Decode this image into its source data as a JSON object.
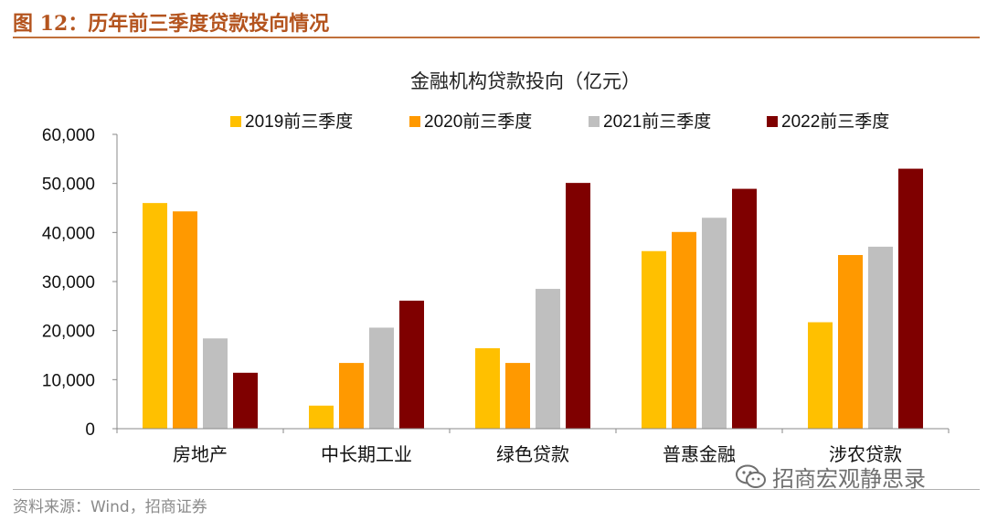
{
  "figure_title": "图 12：历年前三季度贷款投向情况",
  "source_note": "资料来源：Wind，招商证券",
  "watermark": {
    "text": "招商宏观静思录",
    "icon": "wechat-icon"
  },
  "chart_data": {
    "type": "bar",
    "title": "金融机构贷款投向（亿元）",
    "categories": [
      "房地产",
      "中长期工业",
      "绿色贷款",
      "普惠金融",
      "涉农贷款"
    ],
    "series": [
      {
        "name": "2019前三季度",
        "color": "#ffc000",
        "values": [
          46000,
          4700,
          16400,
          36200,
          21700
        ]
      },
      {
        "name": "2020前三季度",
        "color": "#ff9900",
        "values": [
          44300,
          13400,
          13400,
          40100,
          35400
        ]
      },
      {
        "name": "2021前三季度",
        "color": "#bfbfbf",
        "values": [
          18400,
          20600,
          28500,
          43000,
          37100
        ]
      },
      {
        "name": "2022前三季度",
        "color": "#7f0000",
        "values": [
          11400,
          26100,
          50100,
          48900,
          53000
        ]
      }
    ],
    "ylim": [
      0,
      60000
    ],
    "yticks": [
      0,
      10000,
      20000,
      30000,
      40000,
      50000,
      60000
    ],
    "ytick_labels": [
      "0",
      "10,000",
      "20,000",
      "30,000",
      "40,000",
      "50,000",
      "60,000"
    ],
    "xlabel": "",
    "ylabel": "",
    "grid": false,
    "legend_position": "top"
  }
}
